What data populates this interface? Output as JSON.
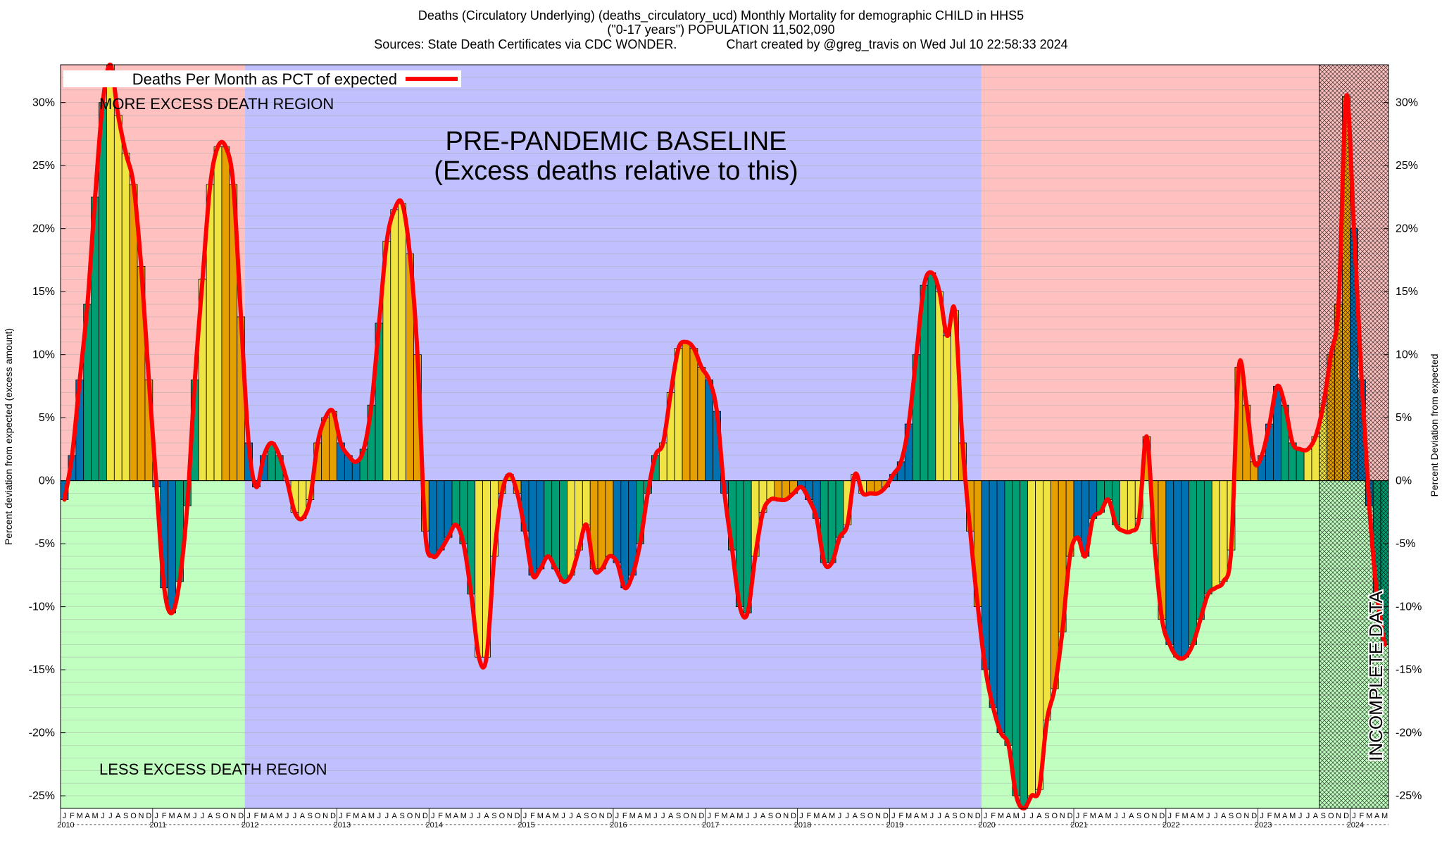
{
  "header": {
    "line1": "Deaths (Circulatory Underlying) (deaths_circulatory_ucd) Monthly Mortality for demographic CHILD in HHS5",
    "line2": "(\"0-17 years\") POPULATION 11,502,090",
    "line3": "Sources: State Death Certificates via CDC WONDER.              Chart created by @greg_travis on Wed Jul 10 22:58:33 2024"
  },
  "chart_data": {
    "type": "bar",
    "title": "Deaths (Circulatory Underlying) (deaths_circulatory_ucd) Monthly Mortality for demographic CHILD in HHS5",
    "ylabel_left": "Percent deviation from expected (excess amount)",
    "ylabel_right": "Percent Deviation from expected",
    "ylim": [
      -26,
      33
    ],
    "yticks": [
      30,
      25,
      20,
      15,
      10,
      5,
      0,
      -5,
      -10,
      -15,
      -20,
      -25
    ],
    "ytick_labels": [
      "30%",
      "25%",
      "20%",
      "15%",
      "10%",
      "5%",
      "0%",
      "-5%",
      "-10%",
      "-15%",
      "-20%",
      "-25%"
    ],
    "legend": {
      "label": "Deaths Per Month as PCT of expected",
      "position": "top-left",
      "color": "#ff0000"
    },
    "annotations": {
      "more_region": "MORE EXCESS DEATH REGION",
      "less_region": "LESS EXCESS DEATH REGION",
      "baseline_line1": "PRE-PANDEMIC BASELINE",
      "baseline_line2": "(Excess deaths relative to this)",
      "incomplete": "INCOMPLETE DATA"
    },
    "month_letters": [
      "J",
      "F",
      "M",
      "A",
      "M",
      "J",
      "J",
      "A",
      "S",
      "O",
      "N",
      "D"
    ],
    "years": [
      "2010",
      "2011",
      "2012",
      "2013",
      "2014",
      "2015",
      "2016",
      "2017",
      "2018",
      "2019",
      "2020",
      "2021",
      "2022",
      "2023",
      "2024"
    ],
    "start": "2010-01",
    "baseline_period": [
      "2012-01",
      "2019-12"
    ],
    "incomplete_period": [
      "2023-09",
      "2024-05"
    ],
    "season_colors": [
      "#0072b2",
      "#009e73",
      "#f0e442",
      "#e69f00"
    ],
    "colors": {
      "excess_bg": "#ffc0c0",
      "deficit_bg": "#c0ffc0",
      "baseline_bg": "#c0c0ff",
      "line": "#ff0000"
    },
    "values": [
      -1.5,
      2,
      8,
      14,
      22.5,
      30,
      33,
      29,
      26,
      23.5,
      17,
      8,
      -0.5,
      -8.5,
      -10.5,
      -8,
      -2,
      8,
      16,
      23.5,
      26.5,
      26.5,
      23.5,
      13,
      3,
      -0.5,
      2,
      3,
      2,
      0,
      -2.5,
      -3,
      -1.5,
      3,
      5,
      5.5,
      3,
      2,
      1.5,
      2.5,
      6,
      12.5,
      19,
      21.5,
      22,
      18,
      10,
      -4,
      -6,
      -5.5,
      -4.5,
      -3.5,
      -5,
      -9,
      -14,
      -14,
      -6,
      -1,
      0.5,
      -1,
      -4,
      -7.5,
      -7,
      -6,
      -7,
      -8,
      -7.5,
      -5.5,
      -3.5,
      -7,
      -7,
      -6,
      -6.5,
      -8.5,
      -7.5,
      -5,
      -1,
      2,
      3,
      7,
      10.5,
      11,
      10.5,
      9,
      8,
      5.5,
      -1,
      -5.5,
      -10,
      -10.5,
      -6,
      -2.5,
      -1.5,
      -1.5,
      -1.5,
      -1,
      -0.5,
      -1.5,
      -3,
      -6.5,
      -6.5,
      -4.5,
      -3.5,
      0.5,
      -1,
      -1,
      -1,
      -0.5,
      0.5,
      1.5,
      4.5,
      10,
      15.5,
      16.5,
      15,
      11.5,
      13.5,
      3,
      -4,
      -10,
      -15,
      -18,
      -20,
      -21,
      -25,
      -26,
      -25,
      -24.5,
      -19,
      -16.5,
      -12,
      -6,
      -4.5,
      -6,
      -3,
      -2.5,
      -1.5,
      -3.5,
      -4,
      -4,
      -3,
      3.5,
      -5,
      -11,
      -13,
      -14,
      -14,
      -13,
      -11,
      -9,
      -8.5,
      -8,
      -5.5,
      9,
      6,
      1.5,
      2,
      4.5,
      7.5,
      6,
      3,
      2.5,
      2.5,
      3.5,
      6,
      10,
      14,
      30.5,
      20,
      8,
      -2,
      -9,
      -13
    ]
  }
}
